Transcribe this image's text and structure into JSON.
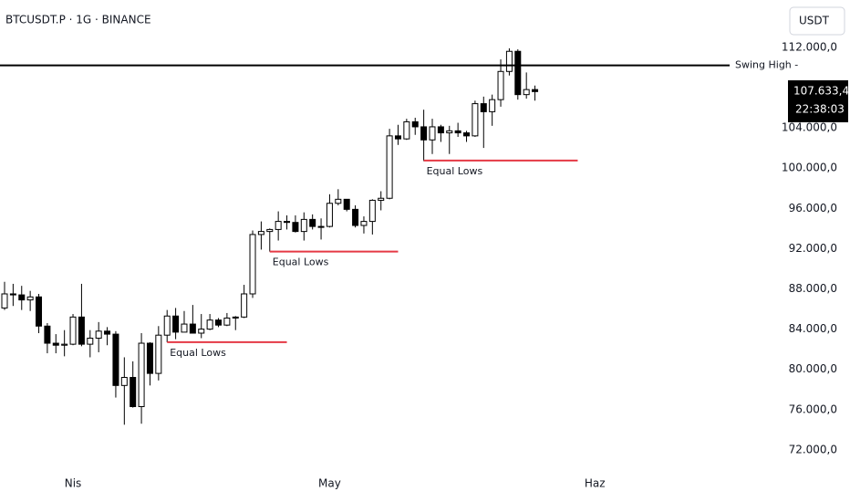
{
  "chart_data": {
    "type": "candlestick",
    "title": "BTCUSDT.P · 1G · BINANCE",
    "currency": "USDT",
    "categories": [
      null,
      null,
      null,
      null,
      null,
      null,
      null,
      null,
      "Nis",
      null,
      null,
      null,
      null,
      null,
      null,
      null,
      null,
      null,
      null,
      null,
      null,
      null,
      null,
      null,
      null,
      null,
      null,
      null,
      null,
      null,
      null,
      null,
      null,
      null,
      null,
      null,
      null,
      null,
      "May",
      null,
      null,
      null,
      null,
      null,
      null,
      null,
      null,
      null,
      null,
      null,
      null,
      null,
      null,
      null,
      null,
      null,
      null,
      null,
      null,
      null,
      null,
      null,
      null,
      null,
      null,
      null,
      null,
      null,
      null,
      "Haz"
    ],
    "open": [
      86100,
      87500,
      87400,
      86900,
      87200,
      84300,
      82600,
      82400,
      82500,
      85200,
      82500,
      83100,
      83800,
      83500,
      78400,
      79200,
      76300,
      82600,
      79600,
      83400,
      85300,
      83700,
      84500,
      83600,
      84000,
      84900,
      84400,
      85100,
      85200,
      87500,
      93400,
      93700,
      93900,
      94700,
      94600,
      93700,
      94900,
      94200,
      94200,
      96500,
      96900,
      95900,
      94300,
      94700,
      96800,
      97000,
      103200,
      102900,
      104600,
      104100,
      102800,
      104100,
      103500,
      103700,
      103500,
      103200,
      106400,
      105600,
      106800,
      109600,
      111600,
      107300,
      107800,
      null,
      null,
      null,
      null,
      null,
      null,
      null
    ],
    "high": [
      88700,
      88500,
      88300,
      87800,
      87500,
      84600,
      83500,
      83900,
      85500,
      88500,
      83900,
      84700,
      84200,
      83800,
      81200,
      80800,
      83600,
      82700,
      84300,
      85900,
      86100,
      85800,
      86400,
      85500,
      85500,
      85100,
      85600,
      85300,
      88400,
      93800,
      94700,
      94000,
      95700,
      95300,
      95300,
      95600,
      95400,
      95000,
      97400,
      97900,
      96900,
      96300,
      95200,
      96900,
      97700,
      103900,
      104300,
      104900,
      105000,
      105800,
      104900,
      104300,
      104200,
      104500,
      103700,
      106700,
      107100,
      107300,
      110800,
      111900,
      111800,
      109500,
      108200,
      null,
      null,
      null,
      null,
      null,
      null,
      null
    ],
    "low": [
      85900,
      86300,
      85900,
      85800,
      83600,
      81600,
      81600,
      81300,
      82400,
      82300,
      81200,
      81700,
      82400,
      77200,
      74500,
      76200,
      74600,
      78400,
      78900,
      82700,
      83000,
      83700,
      83600,
      83100,
      83900,
      84200,
      84300,
      83900,
      85100,
      87100,
      91900,
      91700,
      92800,
      93900,
      93600,
      92800,
      93900,
      92900,
      94100,
      96300,
      95700,
      94100,
      93500,
      93400,
      95800,
      96900,
      102300,
      102800,
      103300,
      100700,
      101400,
      102600,
      101400,
      103100,
      102600,
      103100,
      102000,
      104200,
      106100,
      109200,
      106800,
      106900,
      106700,
      null,
      null,
      null,
      null,
      null,
      null,
      null
    ],
    "close": [
      87500,
      87400,
      86900,
      87200,
      84300,
      82600,
      82400,
      82500,
      85200,
      82500,
      83100,
      83800,
      83500,
      78400,
      79200,
      76300,
      82600,
      79600,
      83400,
      85300,
      83700,
      84500,
      83600,
      84000,
      84900,
      84400,
      85100,
      85200,
      87500,
      93400,
      93700,
      93900,
      94700,
      94600,
      93700,
      94900,
      94200,
      94200,
      96500,
      96900,
      95900,
      94300,
      94700,
      96800,
      97000,
      103200,
      102900,
      104600,
      104100,
      102800,
      104100,
      103500,
      103700,
      103500,
      103200,
      106400,
      105600,
      106800,
      109600,
      111600,
      107300,
      107800,
      107600,
      null,
      null,
      null,
      null,
      null,
      null,
      null
    ],
    "up_color": "#ffffff",
    "down_color": "#000000",
    "border_color": "#000000",
    "ylim": [
      70450,
      116700
    ],
    "yticks": [
      {
        "value": 72000,
        "label": "72.000,0"
      },
      {
        "value": 76000,
        "label": "76.000,0"
      },
      {
        "value": 80000,
        "label": "80.000,0"
      },
      {
        "value": 84000,
        "label": "84.000,0"
      },
      {
        "value": 88000,
        "label": "88.000,0"
      },
      {
        "value": 92000,
        "label": "92.000,0"
      },
      {
        "value": 96000,
        "label": "96.000,0"
      },
      {
        "value": 100000,
        "label": "100.000,0"
      },
      {
        "value": 104000,
        "label": "104.000,0"
      },
      {
        "value": 112000,
        "label": "112.000,0"
      }
    ],
    "grid": false,
    "levels": [
      {
        "label": "Swing High -",
        "value": 110200,
        "color": "#000000",
        "from": 0
      },
      {
        "label": "Equal Lows",
        "value": 82700,
        "color": "#e53945",
        "from": 19,
        "to": 33
      },
      {
        "label": "Equal Lows",
        "value": 91700,
        "color": "#e53945",
        "from": 31,
        "to": 46
      },
      {
        "label": "Equal Lows",
        "value": 100750,
        "color": "#e53945",
        "from": 49,
        "to": 67
      }
    ],
    "last_price": {
      "value": 107633.4,
      "label": "107.633,4",
      "countdown": "22:38:03"
    }
  }
}
